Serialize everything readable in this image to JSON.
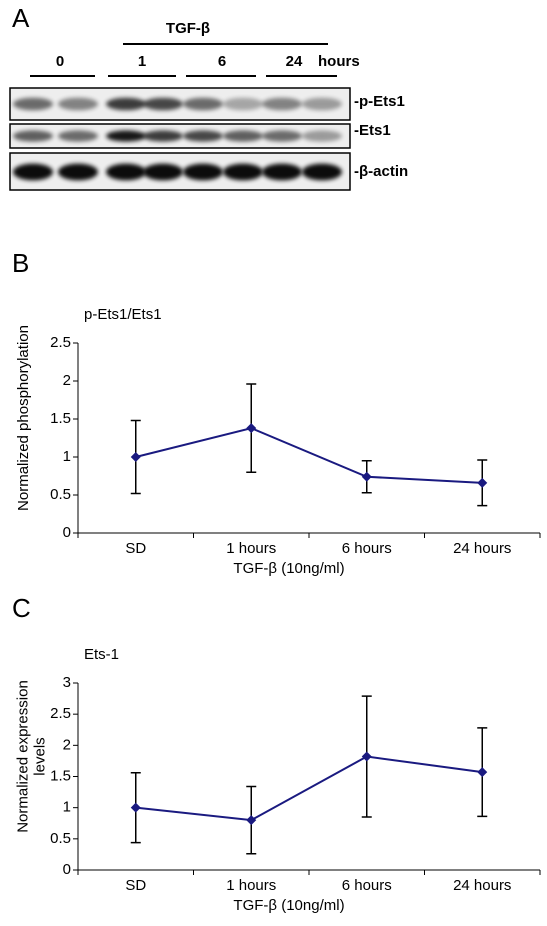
{
  "blot": {
    "panel": "A",
    "treatment": "TGF-β",
    "lanes": [
      "0",
      "1",
      "6",
      "24"
    ],
    "unit": "hours",
    "rows": [
      "-p-Ets1",
      "-Ets1",
      "-β-actin"
    ]
  },
  "chart_data": [
    {
      "type": "line",
      "panel": "B",
      "title": "p-Ets1/Ets1",
      "ylabel": [
        "Normalized phosphorylation"
      ],
      "xlabel": "TGF-β (10ng/ml)",
      "categories": [
        "SD",
        "1 hours",
        "6 hours",
        "24 hours"
      ],
      "values": [
        1.0,
        1.38,
        0.74,
        0.66
      ],
      "errors": [
        0.48,
        0.58,
        0.21,
        0.3
      ],
      "color": "#1a1a80",
      "ylim": [
        0,
        2.5
      ],
      "yticks": [
        0,
        0.5,
        1,
        1.5,
        2,
        2.5
      ]
    },
    {
      "type": "line",
      "panel": "C",
      "title": "Ets-1",
      "ylabel": [
        "Normalized expression",
        "levels"
      ],
      "xlabel": "TGF-β (10ng/ml)",
      "categories": [
        "SD",
        "1 hours",
        "6 hours",
        "24 hours"
      ],
      "values": [
        1.0,
        0.8,
        1.82,
        1.57
      ],
      "errors": [
        0.56,
        0.54,
        0.97,
        0.71
      ],
      "color": "#1a1a80",
      "ylim": [
        0,
        3
      ],
      "yticks": [
        0,
        0.5,
        1,
        1.5,
        2,
        2.5,
        3
      ]
    }
  ]
}
